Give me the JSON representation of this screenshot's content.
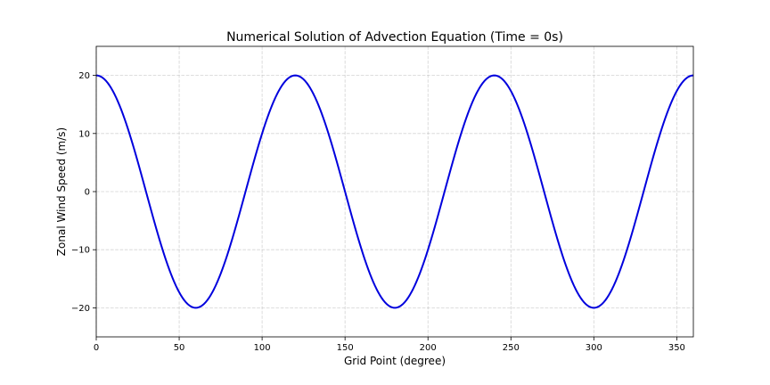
{
  "chart_data": {
    "type": "line",
    "title": "Numerical Solution of Advection Equation (Time = 0s)",
    "xlabel": "Grid Point (degree)",
    "ylabel": "Zonal Wind Speed (m/s)",
    "xlim": [
      0,
      360
    ],
    "ylim": [
      -25,
      25
    ],
    "xticks": [
      0,
      50,
      100,
      150,
      200,
      250,
      300,
      350
    ],
    "yticks": [
      -20,
      -10,
      0,
      10,
      20
    ],
    "xtick_labels": [
      "0",
      "50",
      "100",
      "150",
      "200",
      "250",
      "300",
      "350"
    ],
    "ytick_labels": [
      "−20",
      "−10",
      "0",
      "10",
      "20"
    ],
    "grid": true,
    "series": [
      {
        "color": "#0000dd",
        "function": "20*cos(3*x)",
        "x": [
          0,
          5,
          10,
          15,
          20,
          25,
          30,
          35,
          40,
          45,
          50,
          55,
          60,
          65,
          70,
          75,
          80,
          85,
          90,
          95,
          100,
          105,
          110,
          115,
          120,
          125,
          130,
          135,
          140,
          145,
          150,
          155,
          160,
          165,
          170,
          175,
          180,
          185,
          190,
          195,
          200,
          205,
          210,
          215,
          220,
          225,
          230,
          235,
          240,
          245,
          250,
          255,
          260,
          265,
          270,
          275,
          280,
          285,
          290,
          295,
          300,
          305,
          310,
          315,
          320,
          325,
          330,
          335,
          340,
          345,
          350,
          355,
          360
        ],
        "y": [
          20,
          19.3,
          17.3,
          14.1,
          10,
          5.2,
          0,
          -5.2,
          -10,
          -14.1,
          -17.3,
          -19.3,
          -20,
          -19.3,
          -17.3,
          -14.1,
          -10,
          -5.2,
          0,
          5.2,
          10,
          14.1,
          17.3,
          19.3,
          20,
          19.3,
          17.3,
          14.1,
          10,
          5.2,
          0,
          -5.2,
          -10,
          -14.1,
          -17.3,
          -19.3,
          -20,
          -19.3,
          -17.3,
          -14.1,
          -10,
          -5.2,
          0,
          5.2,
          10,
          14.1,
          17.3,
          19.3,
          20,
          19.3,
          17.3,
          14.1,
          10,
          5.2,
          0,
          -5.2,
          -10,
          -14.1,
          -17.3,
          -19.3,
          -20,
          -19.3,
          -17.3,
          -14.1,
          -10,
          -5.2,
          0,
          5.2,
          10,
          14.1,
          17.3,
          19.3,
          20
        ]
      }
    ]
  }
}
